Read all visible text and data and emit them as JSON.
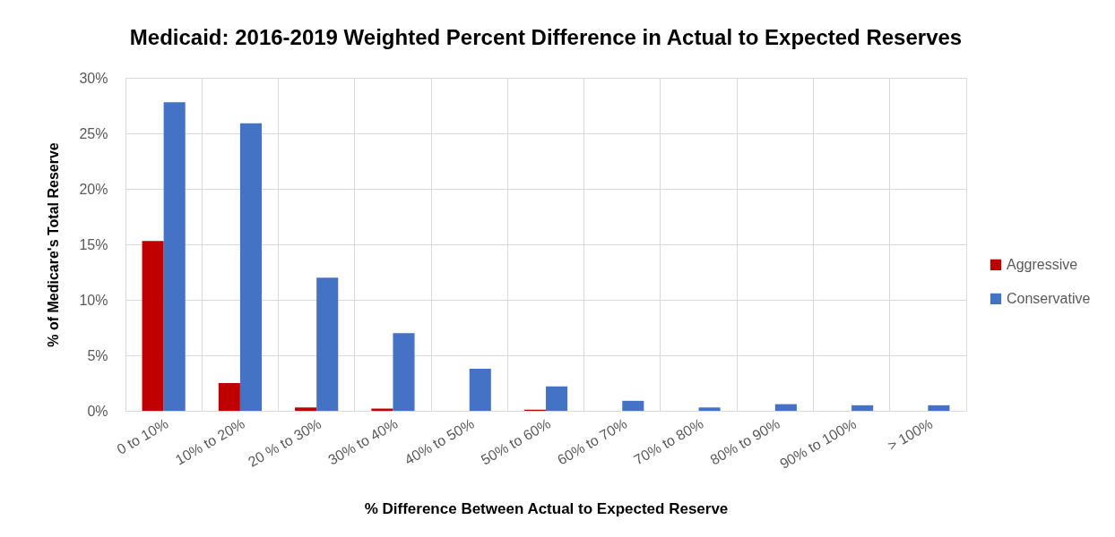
{
  "chart_data": {
    "type": "bar",
    "title": "Medicaid: 2016-2019 Weighted Percent Difference in Actual to Expected Reserves",
    "xlabel": "% Difference Between Actual to Expected Reserve",
    "ylabel": "% of Medicare's Total Reserve",
    "categories": [
      "0 to 10%",
      "10% to 20%",
      "20 % to 30%",
      "30% to 40%",
      "40% to 50%",
      "50% to 60%",
      "60% to 70%",
      "70% to 80%",
      "80% to 90%",
      "90% to 100%",
      "> 100%"
    ],
    "series": [
      {
        "name": "Aggressive",
        "color": "#c00000",
        "values": [
          15.3,
          2.5,
          0.3,
          0.2,
          null,
          0.1,
          null,
          null,
          null,
          null,
          null
        ]
      },
      {
        "name": "Conservative",
        "color": "#4472c4",
        "values": [
          27.8,
          25.9,
          12.0,
          7.0,
          3.8,
          2.2,
          0.9,
          0.3,
          0.6,
          0.5,
          0.5
        ]
      }
    ],
    "ylim": [
      0,
      30
    ],
    "yticks": [
      {
        "value": 0,
        "label": "0%"
      },
      {
        "value": 5,
        "label": "5%"
      },
      {
        "value": 10,
        "label": "10%"
      },
      {
        "value": 15,
        "label": "15%"
      },
      {
        "value": 20,
        "label": "20%"
      },
      {
        "value": 25,
        "label": "25%"
      },
      {
        "value": 30,
        "label": "30%"
      }
    ],
    "grid": true,
    "legend": "right"
  }
}
